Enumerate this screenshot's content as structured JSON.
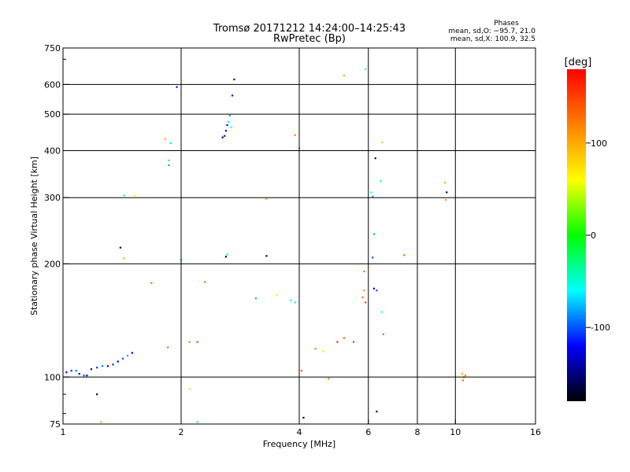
{
  "chart_data": {
    "type": "scatter",
    "title": "Tromsø 20171212 14:24:00–14:25:43",
    "subtitle": "RwPretec (Bp)",
    "xlabel": "Frequency [MHz]",
    "ylabel": "Stationary phase Virtual Height [km]",
    "x_scale": "log",
    "y_scale": "log",
    "xlim": [
      1,
      16
    ],
    "ylim": [
      75,
      750
    ],
    "x_ticks": [
      1,
      2,
      4,
      6,
      8,
      10,
      16
    ],
    "x_tick_labels": [
      "1",
      "2",
      "4",
      "6",
      "8",
      "10",
      "16"
    ],
    "x_gridlines": [
      2,
      4,
      6,
      8,
      10
    ],
    "y_ticks": [
      75,
      100,
      200,
      300,
      400,
      500,
      600,
      750
    ],
    "y_tick_labels": [
      "75",
      "100",
      "200",
      "300",
      "400",
      "500",
      "600",
      "750"
    ],
    "y_gridlines": [
      100,
      200,
      300,
      400,
      500,
      600
    ],
    "grid": true,
    "legend_position": "top-right",
    "legend_title": "Phases",
    "legend_lines": [
      "mean, sd,O: −95.7, 21.0",
      "mean, sd,X: 100.9, 32.5"
    ],
    "colorbar": {
      "label": "[deg]",
      "range": [
        -180,
        180
      ],
      "ticks": [
        100,
        0,
        -100
      ],
      "tick_labels": [
        "100",
        "0",
        "-100"
      ],
      "colors": [
        "#ff0000",
        "#ff8000",
        "#ffff00",
        "#00ff00",
        "#00ffff",
        "#0000ff",
        "#000000"
      ]
    },
    "points": [
      [
        1.02,
        103,
        -120
      ],
      [
        1.05,
        104,
        -110
      ],
      [
        1.08,
        104,
        -90
      ],
      [
        1.1,
        102,
        -130
      ],
      [
        1.13,
        101,
        -100
      ],
      [
        1.15,
        101,
        -120
      ],
      [
        1.18,
        105,
        -140
      ],
      [
        1.22,
        106,
        -110
      ],
      [
        1.26,
        107,
        -90
      ],
      [
        1.3,
        107,
        -130
      ],
      [
        1.34,
        108,
        -110
      ],
      [
        1.38,
        110,
        -150
      ],
      [
        1.42,
        112,
        -100
      ],
      [
        1.46,
        114,
        -80
      ],
      [
        1.5,
        116,
        -120
      ],
      [
        1.22,
        90,
        -160
      ],
      [
        1.25,
        76,
        100
      ],
      [
        1.4,
        221,
        -160
      ],
      [
        1.43,
        207,
        100
      ],
      [
        1.43,
        304,
        -60
      ],
      [
        1.52,
        304,
        60
      ],
      [
        1.82,
        430,
        100
      ],
      [
        1.86,
        377,
        -40
      ],
      [
        1.86,
        366,
        -80
      ],
      [
        1.88,
        419,
        -40
      ],
      [
        1.95,
        591,
        -120
      ],
      [
        2.0,
        205,
        -40
      ],
      [
        2.1,
        93,
        50
      ],
      [
        2.2,
        76,
        -40
      ],
      [
        2.55,
        434,
        -160
      ],
      [
        2.58,
        438,
        -120
      ],
      [
        2.6,
        452,
        -120
      ],
      [
        2.62,
        468,
        -120
      ],
      [
        2.64,
        477,
        -60
      ],
      [
        2.66,
        496,
        -80
      ],
      [
        2.68,
        462,
        -60
      ],
      [
        2.7,
        561,
        -120
      ],
      [
        2.73,
        619,
        -150
      ],
      [
        2.6,
        209,
        -160
      ],
      [
        2.62,
        212,
        -40
      ],
      [
        3.3,
        210,
        -160
      ],
      [
        3.3,
        298,
        100
      ],
      [
        3.9,
        440,
        120
      ],
      [
        4.0,
        406,
        120
      ],
      [
        4.05,
        104,
        140
      ],
      [
        4.1,
        78,
        -160
      ],
      [
        4.75,
        99,
        120
      ],
      [
        5.2,
        634,
        100
      ],
      [
        5.9,
        659,
        -60
      ],
      [
        5.85,
        191,
        130
      ],
      [
        5.85,
        170,
        110
      ],
      [
        5.8,
        163,
        130
      ],
      [
        5.9,
        158,
        150
      ],
      [
        6.1,
        310,
        -60
      ],
      [
        6.15,
        302,
        -80
      ],
      [
        6.25,
        382,
        -150
      ],
      [
        6.45,
        332,
        -60
      ],
      [
        6.5,
        421,
        40
      ],
      [
        6.2,
        240,
        -80
      ],
      [
        6.15,
        208,
        -100
      ],
      [
        6.2,
        172,
        -140
      ],
      [
        6.3,
        170,
        -100
      ],
      [
        6.5,
        149,
        -60
      ],
      [
        6.55,
        130,
        130
      ],
      [
        6.3,
        81,
        -160
      ],
      [
        7.4,
        211,
        130
      ],
      [
        4.4,
        119,
        120
      ],
      [
        4.6,
        117,
        50
      ],
      [
        5.0,
        124,
        160
      ],
      [
        5.2,
        127,
        130
      ],
      [
        5.5,
        124,
        150
      ],
      [
        9.4,
        329,
        100
      ],
      [
        9.5,
        310,
        -160
      ],
      [
        9.45,
        296,
        110
      ],
      [
        10.4,
        102,
        100
      ],
      [
        10.5,
        100,
        110
      ],
      [
        10.6,
        101,
        120
      ],
      [
        10.45,
        98,
        130
      ],
      [
        1.85,
        120,
        130
      ],
      [
        1.68,
        178,
        130
      ],
      [
        2.3,
        179,
        130
      ],
      [
        3.1,
        162,
        -80
      ],
      [
        3.5,
        165,
        60
      ],
      [
        3.8,
        160,
        -60
      ],
      [
        3.9,
        158,
        -40
      ],
      [
        2.1,
        124,
        120
      ],
      [
        2.2,
        124,
        150
      ]
    ]
  }
}
